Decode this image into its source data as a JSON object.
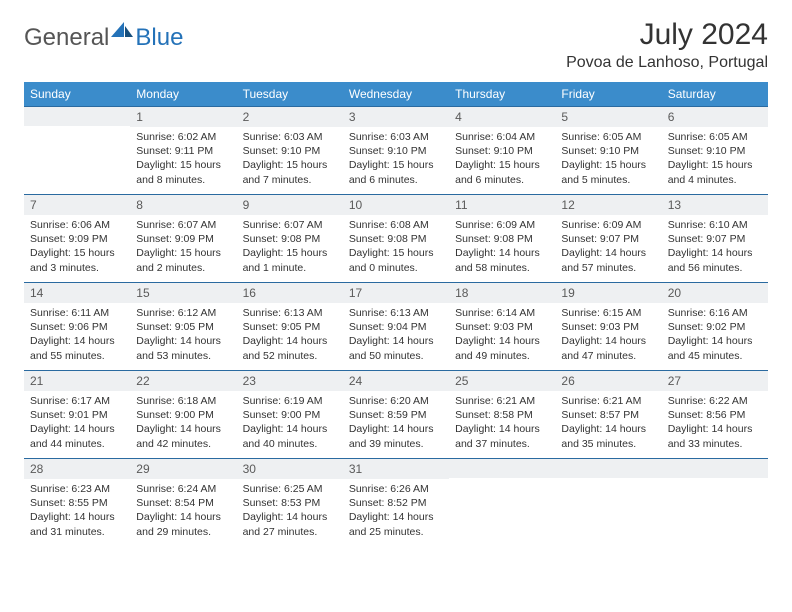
{
  "logo": {
    "part1": "General",
    "part2": "Blue"
  },
  "title": "July 2024",
  "location": "Povoa de Lanhoso, Portugal",
  "colors": {
    "header_bg": "#3b8ccb",
    "header_text": "#ffffff",
    "daynum_bg": "#eef0f2",
    "daynum_border": "#2a6aa0",
    "body_text": "#333333",
    "logo_gray": "#555555",
    "logo_blue": "#2472b8"
  },
  "weekdays": [
    "Sunday",
    "Monday",
    "Tuesday",
    "Wednesday",
    "Thursday",
    "Friday",
    "Saturday"
  ],
  "weeks": [
    [
      {
        "n": "",
        "sr": "",
        "ss": "",
        "dl": ""
      },
      {
        "n": "1",
        "sr": "Sunrise: 6:02 AM",
        "ss": "Sunset: 9:11 PM",
        "dl": "Daylight: 15 hours and 8 minutes."
      },
      {
        "n": "2",
        "sr": "Sunrise: 6:03 AM",
        "ss": "Sunset: 9:10 PM",
        "dl": "Daylight: 15 hours and 7 minutes."
      },
      {
        "n": "3",
        "sr": "Sunrise: 6:03 AM",
        "ss": "Sunset: 9:10 PM",
        "dl": "Daylight: 15 hours and 6 minutes."
      },
      {
        "n": "4",
        "sr": "Sunrise: 6:04 AM",
        "ss": "Sunset: 9:10 PM",
        "dl": "Daylight: 15 hours and 6 minutes."
      },
      {
        "n": "5",
        "sr": "Sunrise: 6:05 AM",
        "ss": "Sunset: 9:10 PM",
        "dl": "Daylight: 15 hours and 5 minutes."
      },
      {
        "n": "6",
        "sr": "Sunrise: 6:05 AM",
        "ss": "Sunset: 9:10 PM",
        "dl": "Daylight: 15 hours and 4 minutes."
      }
    ],
    [
      {
        "n": "7",
        "sr": "Sunrise: 6:06 AM",
        "ss": "Sunset: 9:09 PM",
        "dl": "Daylight: 15 hours and 3 minutes."
      },
      {
        "n": "8",
        "sr": "Sunrise: 6:07 AM",
        "ss": "Sunset: 9:09 PM",
        "dl": "Daylight: 15 hours and 2 minutes."
      },
      {
        "n": "9",
        "sr": "Sunrise: 6:07 AM",
        "ss": "Sunset: 9:08 PM",
        "dl": "Daylight: 15 hours and 1 minute."
      },
      {
        "n": "10",
        "sr": "Sunrise: 6:08 AM",
        "ss": "Sunset: 9:08 PM",
        "dl": "Daylight: 15 hours and 0 minutes."
      },
      {
        "n": "11",
        "sr": "Sunrise: 6:09 AM",
        "ss": "Sunset: 9:08 PM",
        "dl": "Daylight: 14 hours and 58 minutes."
      },
      {
        "n": "12",
        "sr": "Sunrise: 6:09 AM",
        "ss": "Sunset: 9:07 PM",
        "dl": "Daylight: 14 hours and 57 minutes."
      },
      {
        "n": "13",
        "sr": "Sunrise: 6:10 AM",
        "ss": "Sunset: 9:07 PM",
        "dl": "Daylight: 14 hours and 56 minutes."
      }
    ],
    [
      {
        "n": "14",
        "sr": "Sunrise: 6:11 AM",
        "ss": "Sunset: 9:06 PM",
        "dl": "Daylight: 14 hours and 55 minutes."
      },
      {
        "n": "15",
        "sr": "Sunrise: 6:12 AM",
        "ss": "Sunset: 9:05 PM",
        "dl": "Daylight: 14 hours and 53 minutes."
      },
      {
        "n": "16",
        "sr": "Sunrise: 6:13 AM",
        "ss": "Sunset: 9:05 PM",
        "dl": "Daylight: 14 hours and 52 minutes."
      },
      {
        "n": "17",
        "sr": "Sunrise: 6:13 AM",
        "ss": "Sunset: 9:04 PM",
        "dl": "Daylight: 14 hours and 50 minutes."
      },
      {
        "n": "18",
        "sr": "Sunrise: 6:14 AM",
        "ss": "Sunset: 9:03 PM",
        "dl": "Daylight: 14 hours and 49 minutes."
      },
      {
        "n": "19",
        "sr": "Sunrise: 6:15 AM",
        "ss": "Sunset: 9:03 PM",
        "dl": "Daylight: 14 hours and 47 minutes."
      },
      {
        "n": "20",
        "sr": "Sunrise: 6:16 AM",
        "ss": "Sunset: 9:02 PM",
        "dl": "Daylight: 14 hours and 45 minutes."
      }
    ],
    [
      {
        "n": "21",
        "sr": "Sunrise: 6:17 AM",
        "ss": "Sunset: 9:01 PM",
        "dl": "Daylight: 14 hours and 44 minutes."
      },
      {
        "n": "22",
        "sr": "Sunrise: 6:18 AM",
        "ss": "Sunset: 9:00 PM",
        "dl": "Daylight: 14 hours and 42 minutes."
      },
      {
        "n": "23",
        "sr": "Sunrise: 6:19 AM",
        "ss": "Sunset: 9:00 PM",
        "dl": "Daylight: 14 hours and 40 minutes."
      },
      {
        "n": "24",
        "sr": "Sunrise: 6:20 AM",
        "ss": "Sunset: 8:59 PM",
        "dl": "Daylight: 14 hours and 39 minutes."
      },
      {
        "n": "25",
        "sr": "Sunrise: 6:21 AM",
        "ss": "Sunset: 8:58 PM",
        "dl": "Daylight: 14 hours and 37 minutes."
      },
      {
        "n": "26",
        "sr": "Sunrise: 6:21 AM",
        "ss": "Sunset: 8:57 PM",
        "dl": "Daylight: 14 hours and 35 minutes."
      },
      {
        "n": "27",
        "sr": "Sunrise: 6:22 AM",
        "ss": "Sunset: 8:56 PM",
        "dl": "Daylight: 14 hours and 33 minutes."
      }
    ],
    [
      {
        "n": "28",
        "sr": "Sunrise: 6:23 AM",
        "ss": "Sunset: 8:55 PM",
        "dl": "Daylight: 14 hours and 31 minutes."
      },
      {
        "n": "29",
        "sr": "Sunrise: 6:24 AM",
        "ss": "Sunset: 8:54 PM",
        "dl": "Daylight: 14 hours and 29 minutes."
      },
      {
        "n": "30",
        "sr": "Sunrise: 6:25 AM",
        "ss": "Sunset: 8:53 PM",
        "dl": "Daylight: 14 hours and 27 minutes."
      },
      {
        "n": "31",
        "sr": "Sunrise: 6:26 AM",
        "ss": "Sunset: 8:52 PM",
        "dl": "Daylight: 14 hours and 25 minutes."
      },
      {
        "n": "",
        "sr": "",
        "ss": "",
        "dl": ""
      },
      {
        "n": "",
        "sr": "",
        "ss": "",
        "dl": ""
      },
      {
        "n": "",
        "sr": "",
        "ss": "",
        "dl": ""
      }
    ]
  ]
}
